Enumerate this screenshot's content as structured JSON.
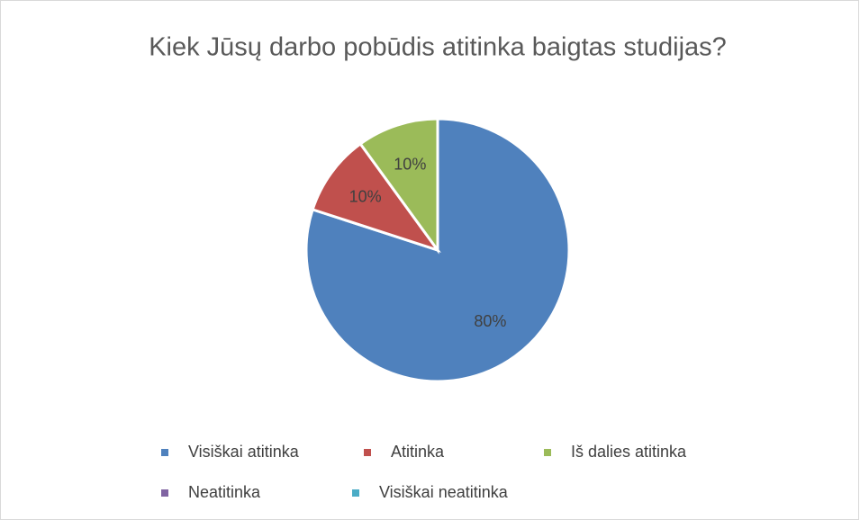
{
  "chart_data": {
    "type": "pie",
    "title": "Kiek Jūsų darbo pobūdis atitinka baigtas studijas?",
    "categories": [
      "Visiškai atitinka",
      "Atitinka",
      "Iš dalies atitinka",
      "Neatitinka",
      "Visiškai neatitinka"
    ],
    "values": [
      80,
      10,
      10,
      0,
      0
    ],
    "value_labels": [
      "80%",
      "10%",
      "10%",
      null,
      null
    ],
    "colors": [
      "#4f81bd",
      "#c0504d",
      "#9bbb59",
      "#8064a2",
      "#4bacc6"
    ],
    "legend": "bottom"
  }
}
